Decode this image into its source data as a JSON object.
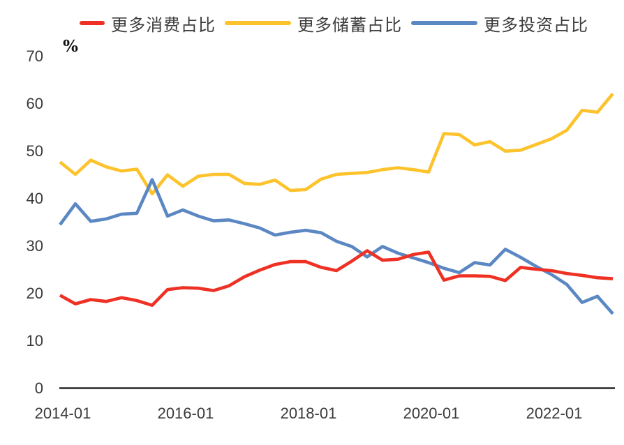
{
  "chart_data": {
    "type": "line",
    "title": "",
    "ylabel_unit": "%",
    "grid": false,
    "legend_position": "top",
    "ylim": [
      0,
      70
    ],
    "y_ticks": [
      0,
      10,
      20,
      30,
      40,
      50,
      60,
      70
    ],
    "x_tick_labels": [
      "2014-01",
      "2016-01",
      "2018-01",
      "2020-01",
      "2022-01"
    ],
    "x": [
      "2013Q4",
      "2014Q1",
      "2014Q2",
      "2014Q3",
      "2014Q4",
      "2015Q1",
      "2015Q2",
      "2015Q3",
      "2015Q4",
      "2016Q1",
      "2016Q2",
      "2016Q3",
      "2016Q4",
      "2017Q1",
      "2017Q2",
      "2017Q3",
      "2017Q4",
      "2018Q1",
      "2018Q2",
      "2018Q3",
      "2018Q4",
      "2019Q1",
      "2019Q2",
      "2019Q3",
      "2019Q4",
      "2020Q1",
      "2020Q2",
      "2020Q3",
      "2020Q4",
      "2021Q1",
      "2021Q2",
      "2021Q3",
      "2021Q4",
      "2022Q1",
      "2022Q2",
      "2022Q3",
      "2022Q4"
    ],
    "series": [
      {
        "name": "更多消费占比",
        "color": "#ee3124",
        "values": [
          19.5,
          17.7,
          18.6,
          18.2,
          19.0,
          18.4,
          17.4,
          20.7,
          21.1,
          21.0,
          20.5,
          21.5,
          23.4,
          24.8,
          26.0,
          26.6,
          26.6,
          25.4,
          24.7,
          26.7,
          28.9,
          26.9,
          27.1,
          28.1,
          28.6,
          22.7,
          23.6,
          23.6,
          23.5,
          22.6,
          25.4,
          25.0,
          24.7,
          24.1,
          23.7,
          23.2,
          23.0
        ]
      },
      {
        "name": "更多储蓄占比",
        "color": "#fcc32d",
        "values": [
          47.6,
          45.0,
          48.0,
          46.6,
          45.7,
          46.1,
          40.9,
          44.9,
          42.5,
          44.6,
          45.0,
          45.0,
          43.1,
          42.9,
          43.8,
          41.6,
          41.8,
          44.0,
          45.0,
          45.2,
          45.4,
          46.0,
          46.4,
          46.0,
          45.5,
          53.6,
          53.4,
          51.2,
          51.9,
          49.9,
          50.1,
          51.3,
          52.5,
          54.3,
          58.5,
          58.1,
          62.0
        ]
      },
      {
        "name": "更多投资占比",
        "color": "#5b87c3",
        "values": [
          34.4,
          38.8,
          35.1,
          35.6,
          36.6,
          36.8,
          43.9,
          36.2,
          37.5,
          36.2,
          35.2,
          35.4,
          34.6,
          33.7,
          32.2,
          32.8,
          33.2,
          32.7,
          30.9,
          29.8,
          27.6,
          29.8,
          28.4,
          27.4,
          26.4,
          25.2,
          24.3,
          26.4,
          25.9,
          29.2,
          27.5,
          25.6,
          23.9,
          21.8,
          18.0,
          19.3,
          15.6
        ]
      }
    ]
  }
}
